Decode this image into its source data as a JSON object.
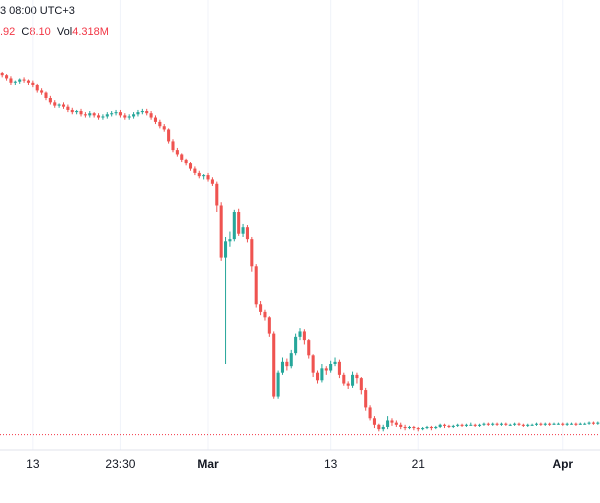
{
  "header": {
    "title_fragment": "3 08:00 UTC+3"
  },
  "ohlc": {
    "low_label": "",
    "low_value": ".92",
    "close_label": "C",
    "close_value": "8.10",
    "vol_label": "Vol",
    "vol_value": "4.318M"
  },
  "colors": {
    "up": "#26a69a",
    "down": "#ef5350",
    "ref_line": "#f23645",
    "grid": "#f0f3fa"
  },
  "chart_data": {
    "type": "candlestick",
    "title": "",
    "xlabel": "",
    "ylabel": "",
    "x_ticks": [
      {
        "label": "13",
        "bold": false,
        "index": 7
      },
      {
        "label": "23:30",
        "bold": false,
        "index": 27
      },
      {
        "label": "Mar",
        "bold": true,
        "index": 47
      },
      {
        "label": "13",
        "bold": false,
        "index": 75
      },
      {
        "label": "21",
        "bold": false,
        "index": 95
      },
      {
        "label": "Apr",
        "bold": true,
        "index": 128
      }
    ],
    "ylim": [
      0,
      350
    ],
    "reference_line": 5,
    "candles": [
      [
        338,
        336,
        339,
        334
      ],
      [
        336,
        333,
        337,
        331
      ],
      [
        333,
        329,
        335,
        327
      ],
      [
        329,
        330,
        331,
        327
      ],
      [
        330,
        332,
        333,
        328
      ],
      [
        332,
        331,
        334,
        329
      ],
      [
        331,
        329,
        332,
        327
      ],
      [
        329,
        327,
        331,
        325
      ],
      [
        327,
        322,
        328,
        320
      ],
      [
        322,
        320,
        324,
        318
      ],
      [
        320,
        315,
        321,
        313
      ],
      [
        315,
        311,
        317,
        309
      ],
      [
        311,
        308,
        313,
        306
      ],
      [
        308,
        309,
        310,
        306
      ],
      [
        309,
        307,
        311,
        305
      ],
      [
        307,
        304,
        309,
        302
      ],
      [
        304,
        302,
        306,
        300
      ],
      [
        302,
        303,
        304,
        300
      ],
      [
        303,
        300,
        305,
        298
      ],
      [
        300,
        299,
        302,
        297
      ],
      [
        299,
        301,
        303,
        297
      ],
      [
        301,
        299,
        302,
        297
      ],
      [
        299,
        297,
        301,
        295
      ],
      [
        297,
        298,
        300,
        295
      ],
      [
        298,
        300,
        302,
        296
      ],
      [
        300,
        301,
        303,
        298
      ],
      [
        301,
        302,
        304,
        299
      ],
      [
        302,
        299,
        304,
        297
      ],
      [
        299,
        297,
        301,
        295
      ],
      [
        297,
        298,
        300,
        295
      ],
      [
        298,
        300,
        302,
        296
      ],
      [
        300,
        302,
        304,
        298
      ],
      [
        302,
        303,
        305,
        300
      ],
      [
        303,
        301,
        305,
        299
      ],
      [
        301,
        297,
        303,
        295
      ],
      [
        297,
        293,
        299,
        291
      ],
      [
        293,
        289,
        295,
        287
      ],
      [
        289,
        286,
        291,
        284
      ],
      [
        286,
        275,
        287,
        273
      ],
      [
        275,
        267,
        277,
        265
      ],
      [
        267,
        263,
        269,
        261
      ],
      [
        263,
        258,
        264,
        256
      ],
      [
        258,
        255,
        259,
        253
      ],
      [
        255,
        250,
        256,
        248
      ],
      [
        250,
        246,
        252,
        244
      ],
      [
        246,
        243,
        248,
        241
      ],
      [
        243,
        244,
        245,
        240
      ],
      [
        244,
        240,
        246,
        238
      ],
      [
        240,
        236,
        242,
        234
      ],
      [
        236,
        216,
        238,
        210
      ],
      [
        216,
        168,
        219,
        165
      ],
      [
        168,
        183,
        187,
        70
      ],
      [
        183,
        185,
        192,
        178
      ],
      [
        185,
        210,
        212,
        183
      ],
      [
        210,
        190,
        213,
        188
      ],
      [
        190,
        196,
        199,
        187
      ],
      [
        196,
        185,
        198,
        182
      ],
      [
        185,
        160,
        187,
        155
      ],
      [
        160,
        125,
        162,
        122
      ],
      [
        125,
        118,
        128,
        115
      ],
      [
        118,
        113,
        120,
        110
      ],
      [
        113,
        98,
        114,
        95
      ],
      [
        98,
        40,
        100,
        38
      ],
      [
        40,
        62,
        64,
        38
      ],
      [
        62,
        72,
        76,
        60
      ],
      [
        72,
        68,
        75,
        64
      ],
      [
        68,
        80,
        83,
        66
      ],
      [
        80,
        95,
        98,
        78
      ],
      [
        95,
        100,
        103,
        92
      ],
      [
        100,
        92,
        102,
        88
      ],
      [
        92,
        78,
        93,
        75
      ],
      [
        78,
        62,
        79,
        58
      ],
      [
        62,
        55,
        64,
        52
      ],
      [
        55,
        66,
        70,
        53
      ],
      [
        66,
        64,
        68,
        60
      ],
      [
        64,
        70,
        73,
        62
      ],
      [
        70,
        72,
        76,
        68
      ],
      [
        72,
        60,
        74,
        57
      ],
      [
        60,
        52,
        62,
        50
      ],
      [
        52,
        50,
        54,
        47
      ],
      [
        50,
        60,
        63,
        48
      ],
      [
        60,
        57,
        62,
        52
      ],
      [
        57,
        46,
        58,
        42
      ],
      [
        46,
        30,
        48,
        27
      ],
      [
        30,
        20,
        32,
        18
      ],
      [
        20,
        14,
        22,
        11
      ],
      [
        14,
        10,
        15,
        8
      ],
      [
        10,
        12,
        14,
        8
      ],
      [
        12,
        18,
        22,
        10
      ],
      [
        18,
        16,
        20,
        13
      ],
      [
        16,
        14,
        18,
        12
      ],
      [
        14,
        12,
        16,
        10
      ],
      [
        12,
        11,
        14,
        9
      ],
      [
        11,
        12,
        13,
        10
      ],
      [
        12,
        11,
        13,
        9
      ],
      [
        11,
        10,
        12,
        8
      ],
      [
        10,
        11,
        12,
        9
      ],
      [
        11,
        12,
        13,
        10
      ],
      [
        12,
        11,
        13,
        9
      ],
      [
        11,
        12,
        13,
        10
      ],
      [
        12,
        14,
        15,
        11
      ],
      [
        14,
        13,
        15,
        11
      ],
      [
        13,
        12,
        14,
        11
      ],
      [
        12,
        13,
        14,
        11
      ],
      [
        13,
        14,
        15,
        12
      ],
      [
        14,
        13,
        15,
        12
      ],
      [
        13,
        14,
        15,
        12
      ],
      [
        14,
        14,
        16,
        13
      ],
      [
        14,
        13,
        15,
        12
      ],
      [
        13,
        14,
        15,
        12
      ],
      [
        14,
        15,
        16,
        13
      ],
      [
        15,
        14,
        16,
        13
      ],
      [
        14,
        15,
        16,
        13
      ],
      [
        15,
        14,
        16,
        13
      ],
      [
        14,
        15,
        16,
        13
      ],
      [
        15,
        14,
        16,
        13
      ],
      [
        14,
        14,
        15,
        13
      ],
      [
        14,
        15,
        16,
        13
      ],
      [
        15,
        14,
        16,
        13
      ],
      [
        14,
        13,
        15,
        12
      ],
      [
        13,
        14,
        15,
        12
      ],
      [
        14,
        14,
        15,
        13
      ],
      [
        14,
        15,
        16,
        13
      ],
      [
        15,
        14,
        16,
        13
      ],
      [
        14,
        15,
        16,
        13
      ],
      [
        15,
        14,
        16,
        13
      ],
      [
        14,
        15,
        16,
        14
      ],
      [
        15,
        15,
        16,
        14
      ],
      [
        15,
        14,
        16,
        13
      ],
      [
        14,
        15,
        16,
        13
      ],
      [
        15,
        15,
        16,
        14
      ],
      [
        15,
        14,
        16,
        13
      ],
      [
        14,
        15,
        16,
        14
      ],
      [
        15,
        15,
        16,
        14
      ],
      [
        15,
        16,
        17,
        14
      ],
      [
        16,
        15,
        17,
        14
      ],
      [
        15,
        16,
        17,
        14
      ]
    ]
  }
}
